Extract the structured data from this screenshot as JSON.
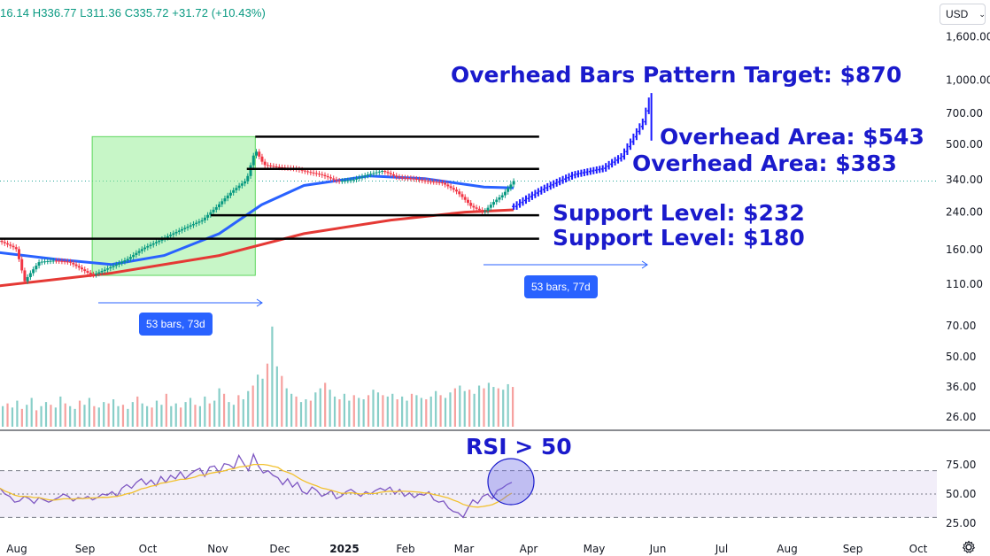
{
  "header": {
    "ohlc_text": "16.14  H336.77  L311.36  C335.72  +31.72 (+10.43%)"
  },
  "currency": {
    "label": "USD",
    "icon": "chevron-down-icon"
  },
  "chart_data": {
    "type": "line",
    "scale": "log",
    "ylim": [
      24,
      1800
    ],
    "y_ticks": [
      "1,600.00",
      "1,000.00",
      "700.00",
      "500.00",
      "340.00",
      "240.00",
      "160.00",
      "110.00",
      "70.00",
      "50.00",
      "36.00",
      "26.00"
    ],
    "y_tick_values": [
      1600,
      1000,
      700,
      500,
      340,
      240,
      160,
      110,
      70,
      50,
      36,
      26
    ],
    "x_ticks": [
      "Aug",
      "Sep",
      "Oct",
      "Nov",
      "Dec",
      "2025",
      "Feb",
      "Mar",
      "Apr",
      "May",
      "Jun",
      "Jul",
      "Aug",
      "Sep",
      "Oct"
    ],
    "last_price": 335.72,
    "series": [
      {
        "name": "",
        "kind": "price",
        "color": "#089981",
        "points": [
          [
            "2024-07-24",
            176
          ],
          [
            "2024-08-01",
            162
          ],
          [
            "2024-08-05",
            113
          ],
          [
            "2024-08-12",
            140
          ],
          [
            "2024-08-19",
            142
          ],
          [
            "2024-08-26",
            140
          ],
          [
            "2024-09-03",
            126
          ],
          [
            "2024-09-06",
            121
          ],
          [
            "2024-09-16",
            134
          ],
          [
            "2024-09-23",
            145
          ],
          [
            "2024-09-30",
            162
          ],
          [
            "2024-10-07",
            175
          ],
          [
            "2024-10-14",
            190
          ],
          [
            "2024-10-21",
            205
          ],
          [
            "2024-10-28",
            220
          ],
          [
            "2024-11-04",
            255
          ],
          [
            "2024-11-11",
            300
          ],
          [
            "2024-11-18",
            340
          ],
          [
            "2024-11-22",
            470
          ],
          [
            "2024-11-26",
            400
          ],
          [
            "2024-12-03",
            390
          ],
          [
            "2024-12-10",
            385
          ],
          [
            "2024-12-17",
            370
          ],
          [
            "2024-12-23",
            360
          ],
          [
            "2024-12-31",
            335
          ],
          [
            "2025-01-07",
            340
          ],
          [
            "2025-01-14",
            360
          ],
          [
            "2025-01-21",
            375
          ],
          [
            "2025-01-28",
            350
          ],
          [
            "2025-02-04",
            345
          ],
          [
            "2025-02-11",
            335
          ],
          [
            "2025-02-18",
            330
          ],
          [
            "2025-02-25",
            300
          ],
          [
            "2025-03-04",
            255
          ],
          [
            "2025-03-10",
            240
          ],
          [
            "2025-03-14",
            265
          ],
          [
            "2025-03-19",
            290
          ],
          [
            "2025-03-24",
            335.72
          ]
        ]
      },
      {
        "name": "",
        "kind": "projection",
        "color": "#1a1aff",
        "points": [
          [
            "2025-03-24",
            255
          ],
          [
            "2025-04-07",
            310
          ],
          [
            "2025-04-21",
            360
          ],
          [
            "2025-05-05",
            385
          ],
          [
            "2025-05-14",
            440
          ],
          [
            "2025-05-19",
            530
          ],
          [
            "2025-05-24",
            640
          ],
          [
            "2025-05-28",
            870
          ]
        ]
      },
      {
        "name": "",
        "kind": "moving-average-50",
        "color": "#2962ff",
        "points": [
          [
            "2024-07-24",
            155
          ],
          [
            "2024-08-20",
            144
          ],
          [
            "2024-09-15",
            136
          ],
          [
            "2024-10-10",
            150
          ],
          [
            "2024-11-05",
            190
          ],
          [
            "2024-11-25",
            260
          ],
          [
            "2024-12-15",
            320
          ],
          [
            "2025-01-15",
            355
          ],
          [
            "2025-02-10",
            345
          ],
          [
            "2025-03-10",
            315
          ],
          [
            "2025-03-24",
            312
          ]
        ]
      },
      {
        "name": "",
        "kind": "moving-average-200",
        "color": "#e53935",
        "points": [
          [
            "2024-07-24",
            108
          ],
          [
            "2024-09-15",
            124
          ],
          [
            "2024-11-05",
            150
          ],
          [
            "2024-12-15",
            190
          ],
          [
            "2025-01-25",
            220
          ],
          [
            "2025-03-01",
            240
          ],
          [
            "2025-03-24",
            246
          ]
        ]
      }
    ],
    "levels": [
      {
        "value": 543,
        "from": "2024-11-22",
        "to": "2025-04-05"
      },
      {
        "value": 383,
        "from": "2024-11-18",
        "to": "2025-04-05"
      },
      {
        "value": 232,
        "from": "2024-11-01",
        "to": "2025-04-05"
      },
      {
        "value": 180,
        "from": "2024-07-24",
        "to": "2025-04-05"
      }
    ],
    "annotations": [
      {
        "text": "Overhead Bars Pattern Target: $870"
      },
      {
        "text": "Overhead Area: $543"
      },
      {
        "text": "Overhead Area: $383"
      },
      {
        "text": "Support Level: $232"
      },
      {
        "text": "Support Level: $180"
      }
    ],
    "highlight_range": {
      "from": "2024-09-06",
      "to": "2024-11-22",
      "low": 121,
      "high": 543
    },
    "bar_counts": [
      {
        "label": "53 bars, 73d",
        "from": "2024-09-06",
        "to": "2024-11-22"
      },
      {
        "label": "53 bars, 77d",
        "from": "2025-03-10",
        "to": "2025-05-28"
      }
    ],
    "volume": {
      "values": [
        15,
        17,
        14,
        19,
        13,
        16,
        21,
        12,
        15,
        18,
        16,
        14,
        22,
        17,
        15,
        13,
        19,
        16,
        21,
        15,
        14,
        18,
        17,
        20,
        15,
        16,
        13,
        18,
        22,
        17,
        15,
        14,
        19,
        16,
        24,
        15,
        17,
        14,
        18,
        21,
        16,
        15,
        22,
        17,
        19,
        28,
        24,
        18,
        16,
        23,
        20,
        26,
        30,
        38,
        35,
        46,
        73,
        44,
        37,
        28,
        24,
        22,
        18,
        20,
        19,
        25,
        28,
        32,
        27,
        22,
        20,
        24,
        19,
        23,
        21,
        20,
        23,
        27,
        25,
        23,
        22,
        24,
        20,
        22,
        19,
        24,
        23,
        21,
        20,
        22,
        26,
        23,
        21,
        25,
        28,
        30,
        26,
        27,
        24,
        30,
        28,
        32,
        29,
        28,
        27,
        31,
        29
      ]
    },
    "rsi": {
      "ylim": [
        25,
        80
      ],
      "ticks": [
        75,
        50,
        25
      ],
      "overbought": 70,
      "oversold": 30,
      "label": "RSI > 50",
      "values": [
        55,
        50,
        48,
        43,
        44,
        48,
        46,
        42,
        47,
        45,
        43,
        45,
        47,
        50,
        48,
        44,
        47,
        46,
        48,
        45,
        47,
        50,
        49,
        52,
        48,
        55,
        58,
        55,
        60,
        63,
        58,
        62,
        57,
        65,
        60,
        66,
        63,
        69,
        63,
        67,
        70,
        72,
        65,
        73,
        74,
        68,
        76,
        75,
        72,
        83,
        76,
        70,
        84,
        74,
        68,
        70,
        66,
        64,
        58,
        63,
        56,
        60,
        52,
        50,
        56,
        53,
        48,
        50,
        53,
        46,
        48,
        52,
        54,
        51,
        48,
        52,
        50,
        53,
        55,
        53,
        56,
        50,
        54,
        48,
        51,
        47,
        50,
        49,
        52,
        45,
        43,
        44,
        38,
        35,
        34,
        30,
        38,
        45,
        42,
        48,
        50,
        46,
        53,
        55,
        58,
        60
      ]
    }
  }
}
